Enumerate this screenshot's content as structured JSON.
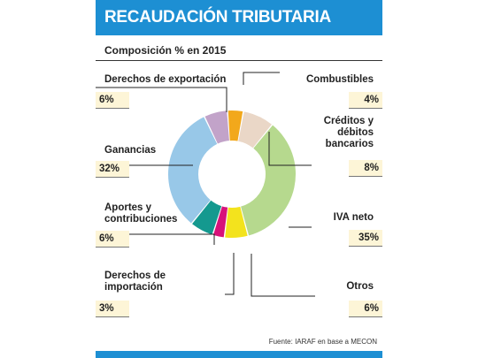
{
  "header": {
    "title": "RECAUDACIÓN TRIBUTARIA"
  },
  "chart_data": {
    "type": "pie",
    "subtitle": "Composición % en 2015",
    "slices": [
      {
        "label": "Combustibles",
        "value": 4,
        "display": "4%",
        "color": "#f2a81b"
      },
      {
        "label": "Créditos y débitos bancarios",
        "value": 8,
        "display": "8%",
        "color": "#ead7c7"
      },
      {
        "label": "IVA neto",
        "value": 35,
        "display": "35%",
        "color": "#b6d98e"
      },
      {
        "label": "Otros",
        "value": 6,
        "display": "6%",
        "color": "#f3e31d"
      },
      {
        "label": "Derechos de importación",
        "value": 3,
        "display": "3%",
        "color": "#d7127a"
      },
      {
        "label": "Aportes y contribuciones",
        "value": 6,
        "display": "6%",
        "color": "#14998f"
      },
      {
        "label": "Ganancias",
        "value": 32,
        "display": "32%",
        "color": "#98c8e8"
      },
      {
        "label": "Derechos de exportación",
        "value": 6,
        "display": "6%",
        "color": "#c2a3c9"
      }
    ],
    "labels": {
      "combustibles": {
        "name": "Combustibles",
        "pct": "4%"
      },
      "creditos": {
        "line1": "Créditos y",
        "line2": "débitos",
        "line3": "bancarios",
        "pct": "8%"
      },
      "iva": {
        "name": "IVA neto",
        "pct": "35%"
      },
      "otros": {
        "name": "Otros",
        "pct": "6%"
      },
      "importacion": {
        "line1": "Derechos de",
        "line2": "importación",
        "pct": "3%"
      },
      "aportes": {
        "line1": "Aportes y",
        "line2": "contribuciones",
        "pct": "6%"
      },
      "ganancias": {
        "name": "Ganancias",
        "pct": "32%"
      },
      "exportacion": {
        "name": "Derechos de exportación",
        "pct": "6%"
      }
    },
    "source": "Fuente: IARAF en base a MECON"
  },
  "colors": {
    "header_bar": "#1d8fd3",
    "percent_box": "#fdf5d7"
  }
}
